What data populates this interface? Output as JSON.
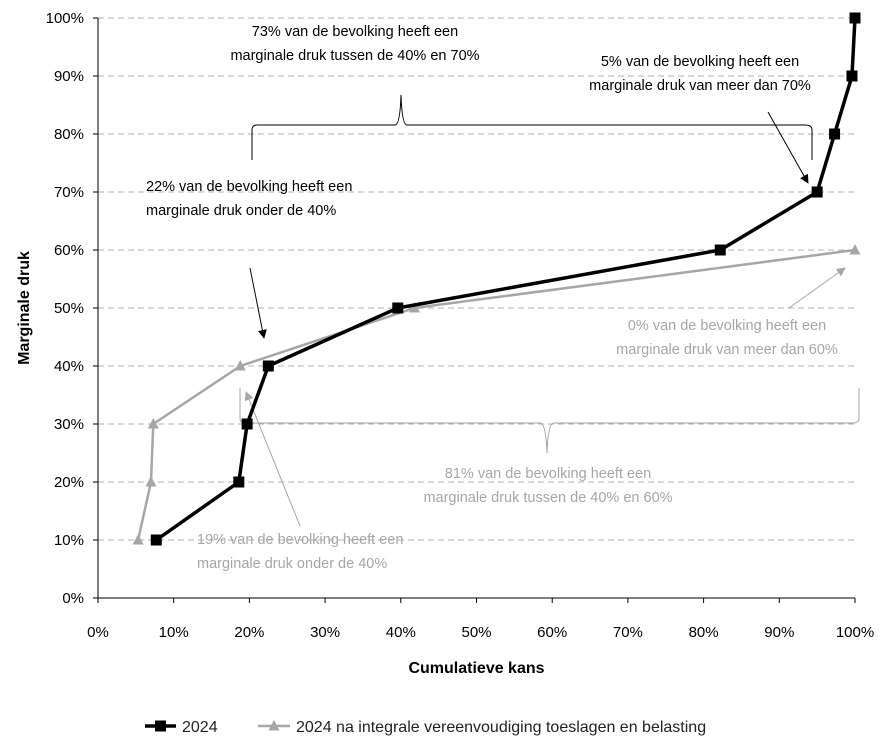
{
  "chart_data": {
    "type": "line",
    "xlabel": "Cumulatieve kans",
    "ylabel": "Marginale druk",
    "xlim": [
      0,
      100
    ],
    "ylim": [
      0,
      100
    ],
    "x_ticks": [
      "0%",
      "10%",
      "20%",
      "30%",
      "40%",
      "50%",
      "60%",
      "70%",
      "80%",
      "90%",
      "100%"
    ],
    "y_ticks": [
      "0%",
      "10%",
      "20%",
      "30%",
      "40%",
      "50%",
      "60%",
      "70%",
      "80%",
      "90%",
      "100%"
    ],
    "grid": "horizontal dashed",
    "legend_position": "bottom",
    "series": [
      {
        "name": "2024",
        "color": "#000000",
        "marker": "square",
        "points": [
          {
            "x": 7.7,
            "y": 10
          },
          {
            "x": 18.6,
            "y": 20
          },
          {
            "x": 19.7,
            "y": 30
          },
          {
            "x": 22.5,
            "y": 40
          },
          {
            "x": 39.6,
            "y": 50
          },
          {
            "x": 82.2,
            "y": 60
          },
          {
            "x": 95.0,
            "y": 70
          },
          {
            "x": 97.3,
            "y": 80
          },
          {
            "x": 99.6,
            "y": 90
          },
          {
            "x": 100.0,
            "y": 100
          }
        ]
      },
      {
        "name": "2024 na integrale vereenvoudiging toeslagen en belasting",
        "color": "#a6a6a6",
        "marker": "triangle",
        "points": [
          {
            "x": 5.3,
            "y": 10
          },
          {
            "x": 7.0,
            "y": 20
          },
          {
            "x": 7.3,
            "y": 30
          },
          {
            "x": 18.8,
            "y": 40
          },
          {
            "x": 41.8,
            "y": 50
          },
          {
            "x": 100.0,
            "y": 60
          }
        ]
      }
    ],
    "annotations": [
      {
        "text": [
          "73% van de bevolking heeft een",
          "marginale druk tussen de 40% en 70%"
        ],
        "color": "#000000"
      },
      {
        "text": [
          "5% van de bevolking heeft een",
          "marginale druk van meer dan 70%"
        ],
        "color": "#000000"
      },
      {
        "text": [
          "22% van de bevolking heeft een",
          "marginale druk onder de 40%"
        ],
        "color": "#000000"
      },
      {
        "text": [
          "0% van de bevolking heeft een",
          "marginale druk van meer dan 60%"
        ],
        "color": "#a6a6a6"
      },
      {
        "text": [
          "81% van de bevolking heeft een",
          "marginale druk tussen de 40% en 60%"
        ],
        "color": "#a6a6a6"
      },
      {
        "text": [
          "19% van de bevolking heeft een",
          "marginale druk onder de 40%"
        ],
        "color": "#a6a6a6"
      }
    ]
  }
}
